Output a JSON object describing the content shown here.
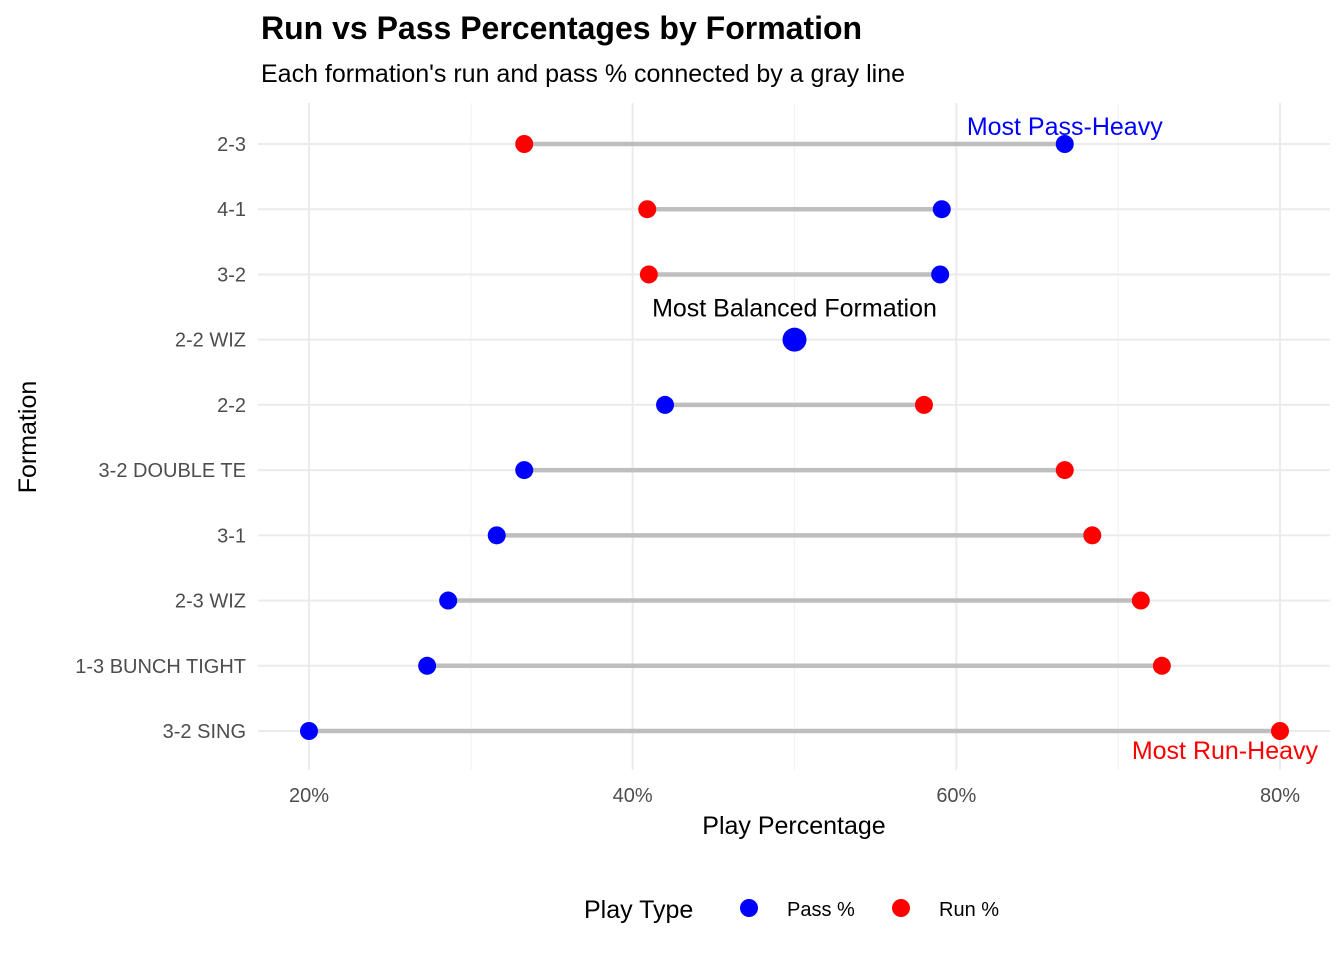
{
  "chart_data": {
    "type": "dumbbell",
    "title": "Run vs Pass Percentages by Formation",
    "subtitle": "Each formation's run and pass % connected by a gray line",
    "xlabel": "Play Percentage",
    "ylabel": "Formation",
    "xlim": [
      17,
      82
    ],
    "x_ticks": [
      20,
      40,
      60,
      80
    ],
    "x_tick_labels": [
      "20%",
      "40%",
      "60%",
      "80%"
    ],
    "grid": true,
    "legend": {
      "title": "Play Type",
      "position": "bottom",
      "entries": [
        {
          "name": "Pass %",
          "color": "#0000ff"
        },
        {
          "name": "Run %",
          "color": "#ff0000"
        }
      ]
    },
    "colors": {
      "pass": "#0000ff",
      "run": "#ff0000",
      "connector": "#bebebe"
    },
    "formations": [
      {
        "name": "2-3",
        "pass": 66.7,
        "run": 33.3
      },
      {
        "name": "4-1",
        "pass": 59.1,
        "run": 40.9
      },
      {
        "name": "3-2",
        "pass": 59.0,
        "run": 41.0
      },
      {
        "name": "2-2 WIZ",
        "pass": 50.0,
        "run": 50.0
      },
      {
        "name": "2-2",
        "pass": 42.0,
        "run": 58.0
      },
      {
        "name": "3-2 DOUBLE TE",
        "pass": 33.3,
        "run": 66.7
      },
      {
        "name": "3-1",
        "pass": 31.6,
        "run": 68.4
      },
      {
        "name": "2-3 WIZ",
        "pass": 28.6,
        "run": 71.4
      },
      {
        "name": "1-3 BUNCH TIGHT",
        "pass": 27.3,
        "run": 72.7
      },
      {
        "name": "3-2 SING",
        "pass": 20.0,
        "run": 80.0
      }
    ],
    "annotations": [
      {
        "text": "Most Pass-Heavy",
        "formation": "2-3",
        "x": 66.7,
        "color": "#0000ff"
      },
      {
        "text": "Most Balanced Formation",
        "formation": "2-2 WIZ",
        "x": 50.0,
        "color": "#000000"
      },
      {
        "text": "Most Run-Heavy",
        "formation": "3-2 SING",
        "x": 80.0,
        "color": "#ff0000"
      }
    ]
  }
}
